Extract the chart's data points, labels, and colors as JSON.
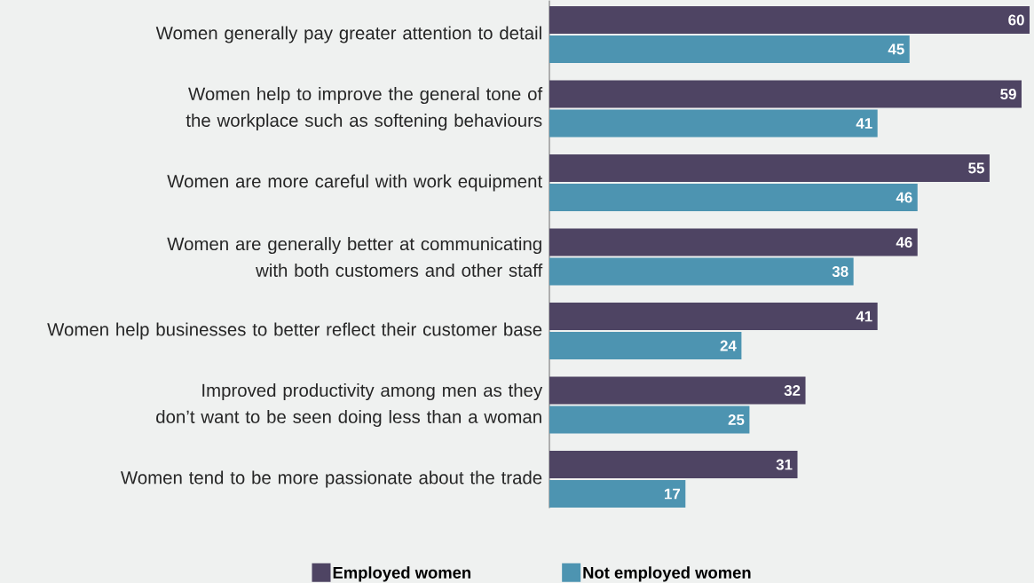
{
  "chart_data": {
    "type": "bar",
    "orientation": "horizontal",
    "categories": [
      "Women generally pay greater attention to detail",
      "Women help to improve the general tone of the workplace such as softening behaviours",
      "Women are more careful with work equipment",
      "Women are generally better at communicating with both customers and other staff",
      "Women help businesses to better reflect their customer base",
      "Improved productivity among men as they don’t want to be seen doing less than a woman",
      "Women tend to be more passionate about the trade"
    ],
    "series": [
      {
        "name": "Employed women",
        "color": "#4e4463",
        "values": [
          60,
          59,
          55,
          46,
          41,
          32,
          31
        ]
      },
      {
        "name": "Not employed women",
        "color": "#4d94b1",
        "values": [
          45,
          41,
          46,
          38,
          24,
          25,
          17
        ]
      }
    ],
    "data_labels": true,
    "legend": "bottom"
  }
}
